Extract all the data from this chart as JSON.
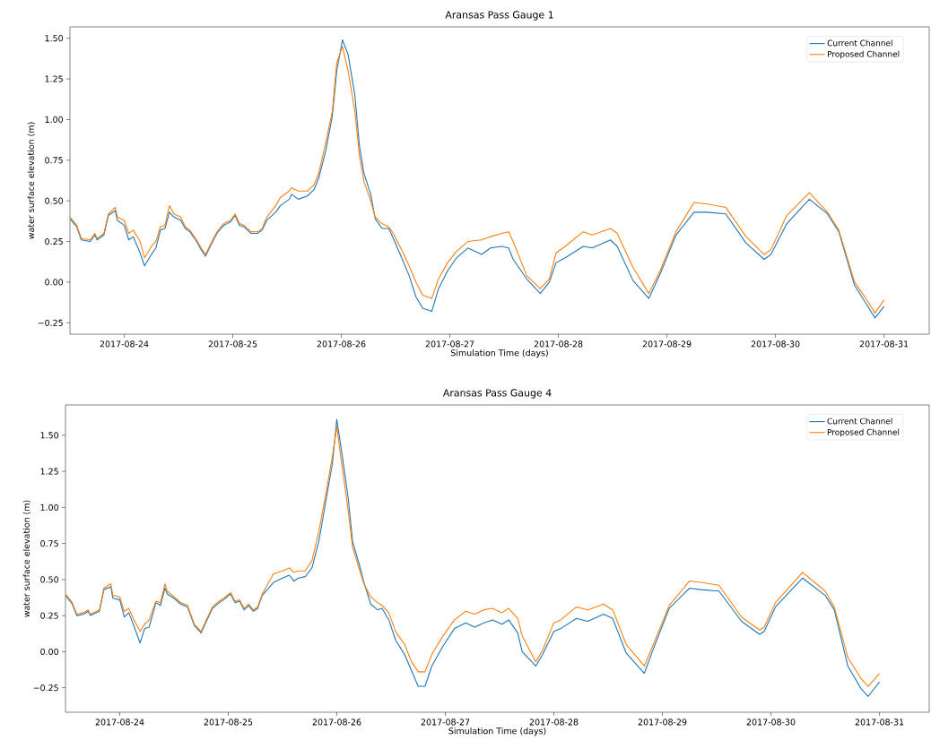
{
  "chart_data": [
    {
      "type": "line",
      "title": "Aransas Pass Gauge 1",
      "xlabel": "Simulation Time (days)",
      "ylabel": "water surface elevation (m)",
      "legend": "top right",
      "xlim": [
        "2017-08-23T12:00",
        "2017-08-31T10:00"
      ],
      "ylim": [
        -0.32,
        1.57
      ],
      "xticks": [
        {
          "value": "2017-08-24",
          "label": "2017-08-24"
        },
        {
          "value": "2017-08-25",
          "label": "2017-08-25"
        },
        {
          "value": "2017-08-26",
          "label": "2017-08-26"
        },
        {
          "value": "2017-08-27",
          "label": "2017-08-27"
        },
        {
          "value": "2017-08-28",
          "label": "2017-08-28"
        },
        {
          "value": "2017-08-29",
          "label": "2017-08-29"
        },
        {
          "value": "2017-08-30",
          "label": "2017-08-30"
        },
        {
          "value": "2017-08-31",
          "label": "2017-08-31"
        }
      ],
      "yticks": [
        {
          "value": -0.25,
          "label": "−0.25"
        },
        {
          "value": 0,
          "label": "0.00"
        },
        {
          "value": 0.25,
          "label": "0.25"
        },
        {
          "value": 0.5,
          "label": "0.50"
        },
        {
          "value": 0.75,
          "label": "0.75"
        },
        {
          "value": 1.0,
          "label": "1.00"
        },
        {
          "value": 1.25,
          "label": "1.25"
        },
        {
          "value": 1.5,
          "label": "1.50"
        }
      ],
      "x": [
        "2017-08-23T12:00",
        "2017-08-23T13:30",
        "2017-08-23T14:30",
        "2017-08-23T16:30",
        "2017-08-23T17:30",
        "2017-08-23T18:00",
        "2017-08-23T19:30",
        "2017-08-23T20:30",
        "2017-08-23T22:00",
        "2017-08-23T22:30",
        "2017-08-24T00:00",
        "2017-08-24T01:00",
        "2017-08-24T02:00",
        "2017-08-24T03:30",
        "2017-08-24T04:30",
        "2017-08-24T06:00",
        "2017-08-24T07:00",
        "2017-08-24T08:00",
        "2017-08-24T09:00",
        "2017-08-24T10:00",
        "2017-08-24T11:00",
        "2017-08-24T12:30",
        "2017-08-24T13:30",
        "2017-08-24T14:30",
        "2017-08-24T16:00",
        "2017-08-24T17:00",
        "2017-08-24T18:00",
        "2017-08-24T19:00",
        "2017-08-24T20:30",
        "2017-08-24T22:00",
        "2017-08-24T23:30",
        "2017-08-25T00:30",
        "2017-08-25T01:30",
        "2017-08-25T02:30",
        "2017-08-25T04:00",
        "2017-08-25T05:30",
        "2017-08-25T06:30",
        "2017-08-25T07:30",
        "2017-08-25T09:30",
        "2017-08-25T10:30",
        "2017-08-25T12:30",
        "2017-08-25T13:00",
        "2017-08-25T14:30",
        "2017-08-25T16:30",
        "2017-08-25T18:00",
        "2017-08-25T19:00",
        "2017-08-25T20:30",
        "2017-08-25T22:00",
        "2017-08-25T23:00",
        "2017-08-26T00:15",
        "2017-08-26T01:30",
        "2017-08-26T03:00",
        "2017-08-26T04:00",
        "2017-08-26T05:00",
        "2017-08-26T06:30",
        "2017-08-26T07:30",
        "2017-08-26T09:00",
        "2017-08-26T10:30",
        "2017-08-26T11:30",
        "2017-08-26T13:30",
        "2017-08-26T15:00",
        "2017-08-26T16:30",
        "2017-08-26T18:00",
        "2017-08-26T20:00",
        "2017-08-26T21:30",
        "2017-08-26T23:30",
        "2017-08-27T01:30",
        "2017-08-27T04:00",
        "2017-08-27T07:00",
        "2017-08-27T09:00",
        "2017-08-27T11:30",
        "2017-08-27T13:00",
        "2017-08-27T14:00",
        "2017-08-27T17:00",
        "2017-08-27T20:00",
        "2017-08-27T22:00",
        "2017-08-27T23:30",
        "2017-08-28T01:30",
        "2017-08-28T05:30",
        "2017-08-28T07:30",
        "2017-08-28T11:30",
        "2017-08-28T13:00",
        "2017-08-28T16:30",
        "2017-08-28T20:00",
        "2017-08-28T22:30",
        "2017-08-29T02:00",
        "2017-08-29T06:00",
        "2017-08-29T09:00",
        "2017-08-29T13:00",
        "2017-08-29T17:30",
        "2017-08-29T21:30",
        "2017-08-29T23:00",
        "2017-08-30T02:30",
        "2017-08-30T07:30",
        "2017-08-30T11:30",
        "2017-08-30T14:00",
        "2017-08-30T17:30",
        "2017-08-30T20:00",
        "2017-08-30T22:00",
        "2017-08-31T00:00"
      ],
      "series": [
        {
          "name": "Current Channel",
          "color": "#1f77b4",
          "values": [
            0.39,
            0.34,
            0.26,
            0.25,
            0.29,
            0.26,
            0.29,
            0.41,
            0.44,
            0.38,
            0.35,
            0.26,
            0.28,
            0.18,
            0.1,
            0.17,
            0.21,
            0.32,
            0.33,
            0.43,
            0.4,
            0.38,
            0.33,
            0.31,
            0.25,
            0.2,
            0.16,
            0.22,
            0.3,
            0.35,
            0.37,
            0.41,
            0.35,
            0.34,
            0.3,
            0.3,
            0.32,
            0.38,
            0.43,
            0.47,
            0.51,
            0.54,
            0.51,
            0.53,
            0.57,
            0.64,
            0.8,
            1.02,
            1.3,
            1.49,
            1.4,
            1.15,
            0.84,
            0.67,
            0.54,
            0.39,
            0.33,
            0.33,
            0.27,
            0.14,
            0.04,
            -0.09,
            -0.16,
            -0.18,
            -0.04,
            0.07,
            0.15,
            0.21,
            0.17,
            0.21,
            0.22,
            0.21,
            0.14,
            0.02,
            -0.07,
            0.0,
            0.12,
            0.15,
            0.22,
            0.21,
            0.26,
            0.22,
            0.01,
            -0.1,
            0.05,
            0.29,
            0.43,
            0.43,
            0.42,
            0.24,
            0.14,
            0.17,
            0.36,
            0.51,
            0.42,
            0.31,
            -0.02,
            -0.13,
            -0.22,
            -0.15
          ]
        },
        {
          "name": "Proposed Channel",
          "color": "#ff7f0e",
          "values": [
            0.4,
            0.35,
            0.27,
            0.26,
            0.3,
            0.27,
            0.3,
            0.42,
            0.46,
            0.4,
            0.38,
            0.3,
            0.32,
            0.25,
            0.15,
            0.22,
            0.25,
            0.34,
            0.35,
            0.47,
            0.42,
            0.4,
            0.34,
            0.32,
            0.26,
            0.21,
            0.17,
            0.23,
            0.31,
            0.36,
            0.38,
            0.42,
            0.36,
            0.35,
            0.31,
            0.31,
            0.33,
            0.4,
            0.47,
            0.52,
            0.56,
            0.58,
            0.56,
            0.56,
            0.6,
            0.67,
            0.85,
            1.05,
            1.35,
            1.45,
            1.3,
            1.05,
            0.78,
            0.62,
            0.5,
            0.4,
            0.36,
            0.34,
            0.3,
            0.19,
            0.1,
            0.0,
            -0.08,
            -0.1,
            0.02,
            0.12,
            0.19,
            0.25,
            0.26,
            0.28,
            0.3,
            0.31,
            0.25,
            0.04,
            -0.04,
            0.02,
            0.18,
            0.22,
            0.31,
            0.29,
            0.33,
            0.3,
            0.09,
            -0.07,
            0.07,
            0.31,
            0.49,
            0.48,
            0.46,
            0.28,
            0.17,
            0.2,
            0.41,
            0.55,
            0.43,
            0.32,
            0.0,
            -0.1,
            -0.19,
            -0.11
          ]
        }
      ]
    },
    {
      "type": "line",
      "title": "Aransas Pass Gauge 4",
      "xlabel": "Simulation Time (days)",
      "ylabel": "water surface elevation (m)",
      "legend": "top right",
      "xlim": [
        "2017-08-23T12:00",
        "2017-08-31T11:00"
      ],
      "ylim": [
        -0.42,
        1.71
      ],
      "xticks": [
        {
          "value": "2017-08-24",
          "label": "2017-08-24"
        },
        {
          "value": "2017-08-25",
          "label": "2017-08-25"
        },
        {
          "value": "2017-08-26",
          "label": "2017-08-26"
        },
        {
          "value": "2017-08-27",
          "label": "2017-08-27"
        },
        {
          "value": "2017-08-28",
          "label": "2017-08-28"
        },
        {
          "value": "2017-08-29",
          "label": "2017-08-29"
        },
        {
          "value": "2017-08-30",
          "label": "2017-08-30"
        },
        {
          "value": "2017-08-31",
          "label": "2017-08-31"
        }
      ],
      "yticks": [
        {
          "value": -0.25,
          "label": "−0.25"
        },
        {
          "value": 0,
          "label": "0.00"
        },
        {
          "value": 0.25,
          "label": "0.25"
        },
        {
          "value": 0.5,
          "label": "0.50"
        },
        {
          "value": 0.75,
          "label": "0.75"
        },
        {
          "value": 1.0,
          "label": "1.00"
        },
        {
          "value": 1.25,
          "label": "1.25"
        },
        {
          "value": 1.5,
          "label": "1.50"
        }
      ],
      "x": [
        "2017-08-23T12:00",
        "2017-08-23T13:30",
        "2017-08-23T14:30",
        "2017-08-23T16:00",
        "2017-08-23T17:00",
        "2017-08-23T17:30",
        "2017-08-23T19:30",
        "2017-08-23T20:30",
        "2017-08-23T22:00",
        "2017-08-23T22:30",
        "2017-08-24T00:00",
        "2017-08-24T01:00",
        "2017-08-24T02:00",
        "2017-08-24T03:00",
        "2017-08-24T04:30",
        "2017-08-24T05:30",
        "2017-08-24T06:30",
        "2017-08-24T08:00",
        "2017-08-24T09:00",
        "2017-08-24T10:00",
        "2017-08-24T10:30",
        "2017-08-24T12:00",
        "2017-08-24T13:30",
        "2017-08-24T15:00",
        "2017-08-24T16:30",
        "2017-08-24T18:00",
        "2017-08-24T19:00",
        "2017-08-24T20:30",
        "2017-08-24T22:00",
        "2017-08-24T23:00",
        "2017-08-25T00:30",
        "2017-08-25T01:30",
        "2017-08-25T02:30",
        "2017-08-25T03:30",
        "2017-08-25T04:30",
        "2017-08-25T05:30",
        "2017-08-25T06:30",
        "2017-08-25T07:30",
        "2017-08-25T10:00",
        "2017-08-25T12:00",
        "2017-08-25T13:30",
        "2017-08-25T14:30",
        "2017-08-25T15:30",
        "2017-08-25T17:00",
        "2017-08-25T18:30",
        "2017-08-25T20:00",
        "2017-08-25T21:30",
        "2017-08-25T23:00",
        "2017-08-26T00:00",
        "2017-08-26T01:00",
        "2017-08-26T02:30",
        "2017-08-26T03:30",
        "2017-08-26T05:00",
        "2017-08-26T06:00",
        "2017-08-26T07:30",
        "2017-08-26T09:00",
        "2017-08-26T10:00",
        "2017-08-26T11:30",
        "2017-08-26T13:00",
        "2017-08-26T15:00",
        "2017-08-26T16:30",
        "2017-08-26T18:00",
        "2017-08-26T19:30",
        "2017-08-26T21:00",
        "2017-08-26T23:30",
        "2017-08-27T02:00",
        "2017-08-27T04:30",
        "2017-08-27T06:30",
        "2017-08-27T08:30",
        "2017-08-27T10:30",
        "2017-08-27T12:30",
        "2017-08-27T14:00",
        "2017-08-27T16:00",
        "2017-08-27T17:00",
        "2017-08-27T20:00",
        "2017-08-27T21:30",
        "2017-08-28T00:00",
        "2017-08-28T01:30",
        "2017-08-28T05:00",
        "2017-08-28T07:30",
        "2017-08-28T11:00",
        "2017-08-28T13:00",
        "2017-08-28T16:00",
        "2017-08-28T20:00",
        "2017-08-28T22:00",
        "2017-08-29T01:30",
        "2017-08-29T06:00",
        "2017-08-29T08:30",
        "2017-08-29T12:30",
        "2017-08-29T17:30",
        "2017-08-29T21:30",
        "2017-08-29T22:30",
        "2017-08-30T01:00",
        "2017-08-30T07:00",
        "2017-08-30T12:00",
        "2017-08-30T14:00",
        "2017-08-30T17:00",
        "2017-08-30T20:00",
        "2017-08-30T21:30",
        "2017-08-31T00:00"
      ],
      "series": [
        {
          "name": "Current Channel",
          "color": "#1f77b4",
          "values": [
            0.39,
            0.33,
            0.25,
            0.26,
            0.28,
            0.25,
            0.28,
            0.43,
            0.45,
            0.37,
            0.36,
            0.24,
            0.27,
            0.19,
            0.06,
            0.16,
            0.17,
            0.34,
            0.32,
            0.44,
            0.4,
            0.37,
            0.33,
            0.31,
            0.18,
            0.13,
            0.2,
            0.3,
            0.34,
            0.36,
            0.4,
            0.34,
            0.35,
            0.29,
            0.32,
            0.28,
            0.3,
            0.39,
            0.48,
            0.51,
            0.53,
            0.49,
            0.51,
            0.52,
            0.58,
            0.76,
            1.03,
            1.3,
            1.61,
            1.4,
            1.07,
            0.76,
            0.6,
            0.48,
            0.33,
            0.29,
            0.3,
            0.22,
            0.08,
            -0.02,
            -0.13,
            -0.24,
            -0.24,
            -0.1,
            0.04,
            0.16,
            0.2,
            0.17,
            0.2,
            0.22,
            0.19,
            0.22,
            0.13,
            0.0,
            -0.1,
            -0.02,
            0.14,
            0.16,
            0.23,
            0.21,
            0.26,
            0.23,
            -0.01,
            -0.15,
            0.02,
            0.3,
            0.44,
            0.43,
            0.42,
            0.21,
            0.12,
            0.14,
            0.31,
            0.51,
            0.39,
            0.29,
            -0.1,
            -0.26,
            -0.31,
            -0.21
          ]
        },
        {
          "name": "Proposed Channel",
          "color": "#ff7f0e",
          "values": [
            0.4,
            0.34,
            0.26,
            0.27,
            0.29,
            0.26,
            0.29,
            0.44,
            0.47,
            0.39,
            0.38,
            0.28,
            0.3,
            0.23,
            0.14,
            0.19,
            0.22,
            0.35,
            0.34,
            0.47,
            0.42,
            0.38,
            0.34,
            0.32,
            0.19,
            0.14,
            0.21,
            0.31,
            0.35,
            0.37,
            0.41,
            0.35,
            0.36,
            0.3,
            0.33,
            0.29,
            0.31,
            0.4,
            0.54,
            0.56,
            0.58,
            0.55,
            0.56,
            0.56,
            0.63,
            0.83,
            1.08,
            1.35,
            1.56,
            1.32,
            0.98,
            0.72,
            0.57,
            0.47,
            0.38,
            0.34,
            0.32,
            0.27,
            0.14,
            0.05,
            -0.07,
            -0.14,
            -0.14,
            -0.02,
            0.11,
            0.22,
            0.28,
            0.26,
            0.29,
            0.3,
            0.27,
            0.3,
            0.23,
            0.11,
            -0.07,
            0.01,
            0.2,
            0.22,
            0.31,
            0.29,
            0.33,
            0.29,
            0.05,
            -0.1,
            0.05,
            0.32,
            0.49,
            0.48,
            0.46,
            0.24,
            0.15,
            0.17,
            0.34,
            0.55,
            0.42,
            0.31,
            -0.04,
            -0.19,
            -0.24,
            -0.15
          ]
        }
      ]
    }
  ]
}
